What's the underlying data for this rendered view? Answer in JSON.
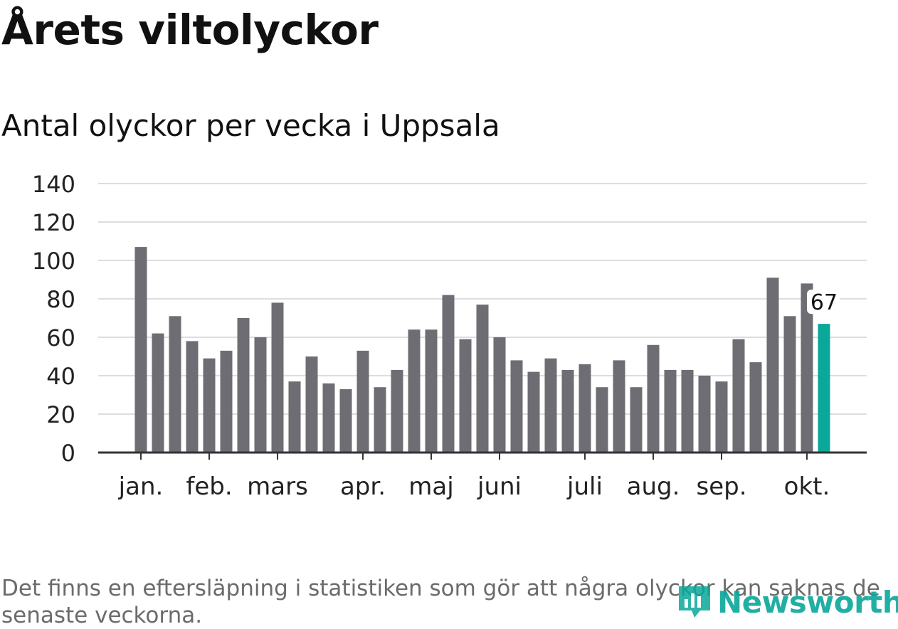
{
  "title": "Årets viltolyckor",
  "subtitle": "Antal olyckor per vecka i Uppsala",
  "footnote": "Det finns en eftersläpning i statistiken som gör att några olyckor kan saknas de senaste veckorna.",
  "logo": {
    "name": "newsworthy-logo-icon",
    "text": "Newsworthy"
  },
  "colors": {
    "bar": "#6e6d73",
    "highlight": "#0aa79b",
    "grid": "#dddddd",
    "axis": "#333333"
  },
  "chart_data": {
    "type": "bar",
    "title": "Antal olyckor per vecka i Uppsala",
    "ylim": [
      0,
      140
    ],
    "yticks": [
      0,
      20,
      40,
      60,
      80,
      100,
      120,
      140
    ],
    "values": [
      107,
      62,
      71,
      58,
      49,
      53,
      70,
      60,
      78,
      37,
      50,
      36,
      33,
      53,
      34,
      43,
      64,
      64,
      82,
      59,
      77,
      60,
      48,
      42,
      49,
      43,
      46,
      34,
      48,
      34,
      56,
      43,
      43,
      40,
      37,
      59,
      47,
      91,
      71,
      88,
      67
    ],
    "highlight_index": 40,
    "highlight_label": "67",
    "month_labels": [
      {
        "label": "jan.",
        "week_index": 0
      },
      {
        "label": "feb.",
        "week_index": 4
      },
      {
        "label": "mars",
        "week_index": 8
      },
      {
        "label": "apr.",
        "week_index": 13
      },
      {
        "label": "maj",
        "week_index": 17
      },
      {
        "label": "juni",
        "week_index": 21
      },
      {
        "label": "juli",
        "week_index": 26
      },
      {
        "label": "aug.",
        "week_index": 30
      },
      {
        "label": "sep.",
        "week_index": 34
      },
      {
        "label": "okt.",
        "week_index": 39
      }
    ]
  }
}
